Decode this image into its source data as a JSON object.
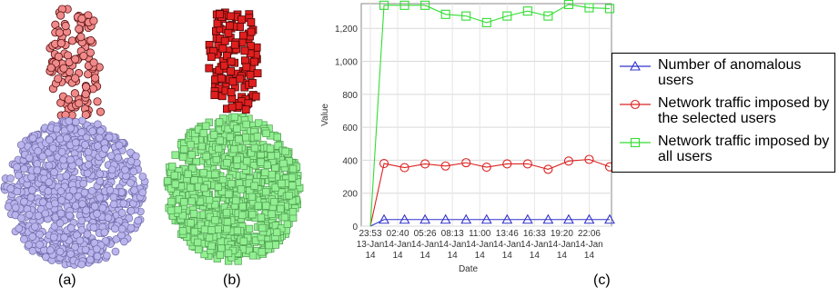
{
  "panels": {
    "a": {
      "caption": "(a)",
      "top_color": "#f08a8a",
      "top_stroke": "#5a1010",
      "bottom_color": "#b9b4ec",
      "bottom_stroke": "#6f6aa8"
    },
    "b": {
      "caption": "(b)",
      "top_color": "#e01f1f",
      "top_stroke": "#4a0606",
      "bottom_color": "#92ef92",
      "bottom_stroke": "#4e9e4e"
    },
    "c": {
      "caption": "(c)"
    }
  },
  "chart_data": {
    "type": "line",
    "xlabel": "Date",
    "ylabel": "Value",
    "ylim": [
      0,
      1350
    ],
    "yticks": [
      0,
      200,
      400,
      600,
      800,
      1000,
      1200
    ],
    "ytick_labels": [
      "0",
      "200",
      "400",
      "600",
      "800",
      "1,000",
      "1,200"
    ],
    "grid": true,
    "legend_position": "right",
    "x_tick_labels": [
      [
        "23:53",
        "13-Jan",
        "14"
      ],
      [
        "02:40",
        "14-Jan",
        "14"
      ],
      [
        "05:26",
        "14-Jan",
        "14"
      ],
      [
        "08:13",
        "14-Jan",
        "14"
      ],
      [
        "11:00",
        "14-Jan",
        "14"
      ],
      [
        "13:46",
        "14-Jan",
        "14"
      ],
      [
        "16:33",
        "14-Jan",
        "14"
      ],
      [
        "19:20",
        "14-Jan",
        "14"
      ],
      [
        "22:06",
        "14-Jan",
        "14"
      ]
    ],
    "x_tick_positions": [
      0,
      2,
      4,
      6,
      8,
      10,
      12,
      14,
      16
    ],
    "xlim": [
      0,
      17.5
    ],
    "x": [
      1,
      2.5,
      4,
      5.5,
      7,
      8.5,
      10,
      11.5,
      13,
      14.5,
      16,
      17.5
    ],
    "series": [
      {
        "name": "Number of anomalous users",
        "color": "#3333cc",
        "marker": "triangle",
        "values": [
          40,
          40,
          40,
          40,
          40,
          40,
          40,
          40,
          40,
          40,
          40,
          40
        ]
      },
      {
        "name": "Network traffic imposed by the selected users",
        "color": "#dd2222",
        "marker": "circle",
        "values": [
          380,
          355,
          378,
          365,
          385,
          358,
          378,
          378,
          345,
          395,
          405,
          360
        ]
      },
      {
        "name": "Network traffic imposed by all users",
        "color": "#33dd33",
        "marker": "square",
        "values": [
          1340,
          1340,
          1340,
          1285,
          1275,
          1235,
          1275,
          1305,
          1275,
          1345,
          1325,
          1320
        ]
      }
    ],
    "start": {
      "x": 0,
      "value": 0
    }
  }
}
